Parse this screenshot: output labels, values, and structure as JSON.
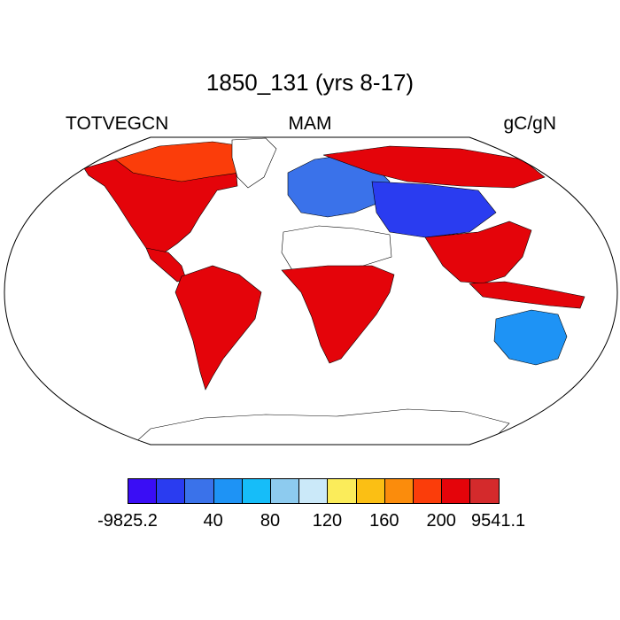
{
  "map": {
    "title": "1850_131 (yrs 8-17)",
    "variable": "TOTVEGCN",
    "season": "MAM",
    "units": "gC/gN"
  },
  "colorbar": {
    "colors": [
      "#3a0df5",
      "#2a3cf0",
      "#3a72ea",
      "#1e93f5",
      "#16bdf9",
      "#8dcbef",
      "#cbe9f9",
      "#fbec5a",
      "#fbbf14",
      "#fb8c0c",
      "#fb3d0a",
      "#e4040a",
      "#d42a2c"
    ],
    "labels": [
      "-9825.2",
      "40",
      "80",
      "120",
      "160",
      "200",
      "9541.1"
    ]
  },
  "regions": [
    {
      "name": "North America",
      "color": "#e4040a"
    },
    {
      "name": "Canada",
      "color": "#fb3d0a"
    },
    {
      "name": "Greenland",
      "color": "#ffffff"
    },
    {
      "name": "South America",
      "color": "#e4040a"
    },
    {
      "name": "Sahara",
      "color": "#ffffff"
    },
    {
      "name": "Africa",
      "color": "#e4040a"
    },
    {
      "name": "Europe",
      "color": "#3a72ea"
    },
    {
      "name": "Siberia",
      "color": "#e4040a"
    },
    {
      "name": "Central Asia",
      "color": "#2a3cf0"
    },
    {
      "name": "Southeast Asia",
      "color": "#e4040a"
    },
    {
      "name": "Australia",
      "color": "#1e93f5"
    },
    {
      "name": "Antarctica",
      "color": "#ffffff"
    }
  ]
}
